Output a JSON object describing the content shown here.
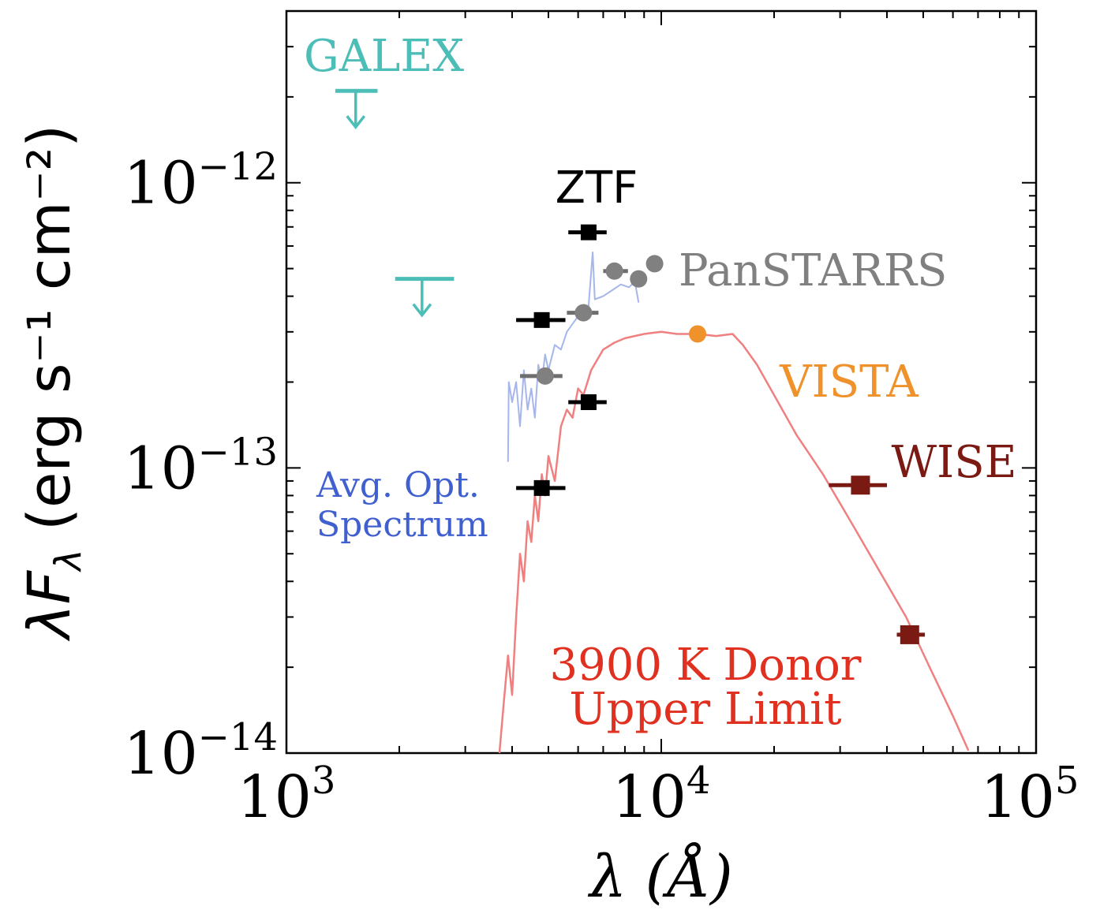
{
  "chart_data": {
    "type": "scatter",
    "title": "",
    "xscale": "log",
    "yscale": "log",
    "xlim": [
      1000,
      100000
    ],
    "ylim": [
      1e-14,
      4e-12
    ],
    "xlabel": "λ (Å)",
    "ylabel": "λF_λ (erg s^-1 cm^-2)",
    "x_ticks": [
      {
        "value": 1000,
        "base": "10",
        "exp": "3"
      },
      {
        "value": 10000,
        "base": "10",
        "exp": "4"
      },
      {
        "value": 100000,
        "base": "10",
        "exp": "5"
      }
    ],
    "y_ticks": [
      {
        "value": 1e-14,
        "base": "10",
        "exp": "−14"
      },
      {
        "value": 1e-13,
        "base": "10",
        "exp": "−13"
      },
      {
        "value": 1e-12,
        "base": "10",
        "exp": "−12"
      }
    ],
    "colors": {
      "galex": "#4dbdb8",
      "ztf": "#000000",
      "panstarrs": "#808080",
      "vista": "#f0922b",
      "wise": "#7a1a12",
      "opt_spectrum": "#a6b6ea",
      "opt_label": "#4060d0",
      "donor": "#f08080",
      "donor_label": "#e03020"
    },
    "series": [
      {
        "name": "GALEX",
        "label": "GALEX",
        "kind": "upper_limit",
        "points": [
          {
            "x": 1530,
            "y": 2.1e-12,
            "xmin": 1350,
            "xmax": 1750
          },
          {
            "x": 2300,
            "y": 4.6e-13,
            "xmin": 1950,
            "xmax": 2800
          }
        ]
      },
      {
        "name": "ZTF",
        "label": "ZTF",
        "kind": "square",
        "points": [
          {
            "x": 4800,
            "y": 3.3e-13,
            "xmin": 4100,
            "xmax": 5550
          },
          {
            "x": 6400,
            "y": 6.7e-13,
            "xmin": 5650,
            "xmax": 7150
          },
          {
            "x": 6400,
            "y": 1.7e-13,
            "xmin": 5650,
            "xmax": 7150
          },
          {
            "x": 4800,
            "y": 8.5e-14,
            "xmin": 4100,
            "xmax": 5550
          }
        ]
      },
      {
        "name": "PanSTARRS",
        "label": "PanSTARRS",
        "kind": "circle",
        "points": [
          {
            "x": 4900,
            "y": 2.1e-13,
            "xmin": 4200,
            "xmax": 5450
          },
          {
            "x": 6200,
            "y": 3.5e-13,
            "xmin": 5600,
            "xmax": 6800
          },
          {
            "x": 7500,
            "y": 4.9e-13,
            "xmin": 7000,
            "xmax": 8150
          },
          {
            "x": 8700,
            "y": 4.6e-13
          },
          {
            "x": 9600,
            "y": 5.2e-13
          }
        ]
      },
      {
        "name": "VISTA",
        "label": "VISTA",
        "kind": "circle",
        "points": [
          {
            "x": 12500,
            "y": 2.95e-13
          }
        ]
      },
      {
        "name": "WISE",
        "label": "WISE",
        "kind": "square",
        "points": [
          {
            "x": 34000,
            "y": 8.7e-14,
            "xmin": 28000,
            "xmax": 40000
          },
          {
            "x": 46000,
            "y": 2.6e-14,
            "xmin": 42500,
            "xmax": 50500
          }
        ]
      },
      {
        "name": "Avg. Opt. Spectrum",
        "label_lines": [
          "Avg. Opt.",
          "Spectrum"
        ],
        "kind": "line",
        "points": [
          {
            "x": 3900,
            "y": 1.05e-13
          },
          {
            "x": 3920,
            "y": 2e-13
          },
          {
            "x": 4000,
            "y": 1.7e-13
          },
          {
            "x": 4100,
            "y": 2e-13
          },
          {
            "x": 4200,
            "y": 1.4e-13
          },
          {
            "x": 4300,
            "y": 2.2e-13
          },
          {
            "x": 4400,
            "y": 1.6e-13
          },
          {
            "x": 4500,
            "y": 1.9e-13
          },
          {
            "x": 4600,
            "y": 1.5e-13
          },
          {
            "x": 4700,
            "y": 2.3e-13
          },
          {
            "x": 4800,
            "y": 2e-13
          },
          {
            "x": 4900,
            "y": 2.5e-13
          },
          {
            "x": 5000,
            "y": 2.2e-13
          },
          {
            "x": 5200,
            "y": 2.7e-13
          },
          {
            "x": 5400,
            "y": 2.6e-13
          },
          {
            "x": 5600,
            "y": 3e-13
          },
          {
            "x": 5800,
            "y": 3.2e-13
          },
          {
            "x": 6000,
            "y": 3.4e-13
          },
          {
            "x": 6200,
            "y": 3.6e-13
          },
          {
            "x": 6400,
            "y": 3.7e-13
          },
          {
            "x": 6563,
            "y": 5.7e-13
          },
          {
            "x": 6650,
            "y": 3.9e-13
          },
          {
            "x": 7000,
            "y": 4e-13
          },
          {
            "x": 7400,
            "y": 4.2e-13
          },
          {
            "x": 7800,
            "y": 4.4e-13
          },
          {
            "x": 8200,
            "y": 4.3e-13
          },
          {
            "x": 8500,
            "y": 4.5e-13
          },
          {
            "x": 8700,
            "y": 3.8e-13
          }
        ]
      },
      {
        "name": "3900 K Donor Upper Limit",
        "label_lines": [
          "3900 K Donor",
          "Upper Limit"
        ],
        "kind": "line",
        "points": [
          {
            "x": 3700,
            "y": 9e-15
          },
          {
            "x": 3800,
            "y": 1.5e-14
          },
          {
            "x": 3900,
            "y": 2.2e-14
          },
          {
            "x": 4000,
            "y": 1.6e-14
          },
          {
            "x": 4100,
            "y": 3e-14
          },
          {
            "x": 4200,
            "y": 5e-14
          },
          {
            "x": 4300,
            "y": 4e-14
          },
          {
            "x": 4400,
            "y": 6.5e-14
          },
          {
            "x": 4500,
            "y": 5.5e-14
          },
          {
            "x": 4600,
            "y": 8e-14
          },
          {
            "x": 4700,
            "y": 6.5e-14
          },
          {
            "x": 4800,
            "y": 9.5e-14
          },
          {
            "x": 4900,
            "y": 8e-14
          },
          {
            "x": 5000,
            "y": 1.1e-13
          },
          {
            "x": 5200,
            "y": 9e-14
          },
          {
            "x": 5400,
            "y": 1.4e-13
          },
          {
            "x": 5600,
            "y": 1.6e-13
          },
          {
            "x": 5800,
            "y": 1.5e-13
          },
          {
            "x": 6000,
            "y": 1.9e-13
          },
          {
            "x": 6200,
            "y": 1.8e-13
          },
          {
            "x": 6500,
            "y": 2.2e-13
          },
          {
            "x": 7000,
            "y": 2.6e-13
          },
          {
            "x": 7500,
            "y": 2.75e-13
          },
          {
            "x": 8000,
            "y": 2.85e-13
          },
          {
            "x": 9000,
            "y": 2.95e-13
          },
          {
            "x": 10000,
            "y": 3e-13
          },
          {
            "x": 11000,
            "y": 2.95e-13
          },
          {
            "x": 12500,
            "y": 2.95e-13
          },
          {
            "x": 14000,
            "y": 2.9e-13
          },
          {
            "x": 15500,
            "y": 2.95e-13
          },
          {
            "x": 16500,
            "y": 2.7e-13
          },
          {
            "x": 18000,
            "y": 2.3e-13
          },
          {
            "x": 20000,
            "y": 1.8e-13
          },
          {
            "x": 23000,
            "y": 1.3e-13
          },
          {
            "x": 27000,
            "y": 9.5e-14
          },
          {
            "x": 32000,
            "y": 6.5e-14
          },
          {
            "x": 38000,
            "y": 4.4e-14
          },
          {
            "x": 45000,
            "y": 3e-14
          },
          {
            "x": 52000,
            "y": 2e-14
          },
          {
            "x": 60000,
            "y": 1.35e-14
          },
          {
            "x": 66000,
            "y": 1.02e-14
          }
        ]
      }
    ]
  }
}
